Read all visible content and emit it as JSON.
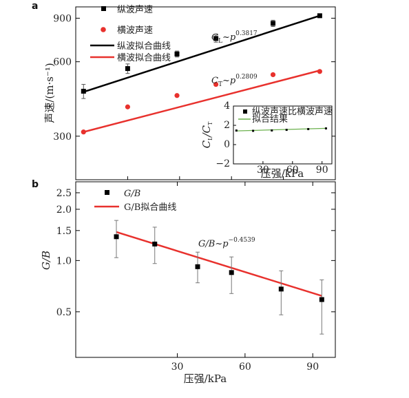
{
  "chart_data": [
    {
      "panel": "a",
      "type": "scatter",
      "ylabel": "声速/(m·s⁻¹)",
      "xlim": [
        0,
        100
      ],
      "ylim": [
        200,
        1000
      ],
      "yscale": "log",
      "yticks": [
        300,
        600,
        900
      ],
      "series": [
        {
          "name": "纵波声速",
          "kind": "marker",
          "marker": "square",
          "color": "#000000",
          "x": [
            3,
            20,
            39,
            54,
            76,
            94
          ],
          "y": [
            456,
            563,
            645,
            745,
            858,
            921
          ],
          "err": [
            30,
            25,
            18,
            25,
            25,
            10
          ]
        },
        {
          "name": "横波声速",
          "kind": "marker",
          "marker": "circle",
          "color": "#e8312d",
          "x": [
            3,
            20,
            39,
            54,
            76,
            94
          ],
          "y": [
            312,
            394,
            438,
            486,
            532,
            548
          ]
        },
        {
          "name": "纵波拟合曲线",
          "kind": "line",
          "color": "#000000",
          "x": [
            3,
            94
          ],
          "y": [
            453,
            921
          ]
        },
        {
          "name": "横波拟合曲线",
          "kind": "line",
          "color": "#e8312d",
          "x": [
            3,
            94
          ],
          "y": [
            312,
            553
          ]
        }
      ],
      "annotations": [
        {
          "id": "cl",
          "base": "C",
          "sub": "L",
          "mid": "~p",
          "sup": "0.3817"
        },
        {
          "id": "ct",
          "base": "C",
          "sub": "T",
          "mid": "~p",
          "sup": "0.2809"
        }
      ]
    },
    {
      "panel": "a-inset",
      "type": "line",
      "xlabel": "压强/kPa",
      "ylabel_base": "C",
      "ylabel_sub1": "L",
      "ylabel_slash": "/",
      "ylabel_sub2": "T",
      "xlim": [
        0,
        100
      ],
      "ylim": [
        -2,
        4
      ],
      "xticks": [
        30,
        60,
        90
      ],
      "yticks": [
        -2,
        0,
        2,
        4
      ],
      "series": [
        {
          "name": "纵波声速比横波声速",
          "kind": "marker",
          "marker": "square",
          "color": "#000000",
          "x": [
            3,
            20,
            39,
            54,
            76,
            94
          ],
          "y": [
            1.46,
            1.43,
            1.47,
            1.53,
            1.61,
            1.68
          ]
        },
        {
          "name": "拟合结果",
          "kind": "line",
          "color": "#6ab04c",
          "x": [
            3,
            94
          ],
          "y": [
            1.42,
            1.69
          ]
        }
      ]
    },
    {
      "panel": "b",
      "type": "scatter",
      "xlabel": "压强/kPa",
      "ylabel": "G/B",
      "xlim": [
        -15,
        100
      ],
      "ylim": [
        0.27,
        2.9
      ],
      "yscale": "log",
      "xticks": [
        30,
        60,
        90
      ],
      "yticks": [
        0.5,
        1.0,
        1.5,
        2.0,
        2.5
      ],
      "series": [
        {
          "name": "G/B",
          "kind": "marker",
          "marker": "square",
          "color": "#000000",
          "x": [
            3,
            20,
            39,
            54,
            76,
            94
          ],
          "y": [
            1.38,
            1.25,
            0.92,
            0.85,
            0.68,
            0.59
          ],
          "ylow": [
            1.04,
            0.96,
            0.74,
            0.64,
            0.48,
            0.37
          ],
          "yhigh": [
            1.72,
            1.57,
            1.12,
            1.05,
            0.87,
            0.77
          ]
        },
        {
          "name": "G/B拟合曲线",
          "kind": "line",
          "color": "#e8312d",
          "x": [
            3,
            94
          ],
          "y": [
            1.47,
            0.62
          ]
        }
      ],
      "annotations": [
        {
          "id": "gb",
          "base": "G/B",
          "mid": "~p",
          "sup": "−0.4539"
        }
      ]
    }
  ],
  "labels": {
    "panel_a": "a",
    "panel_b": "b"
  }
}
